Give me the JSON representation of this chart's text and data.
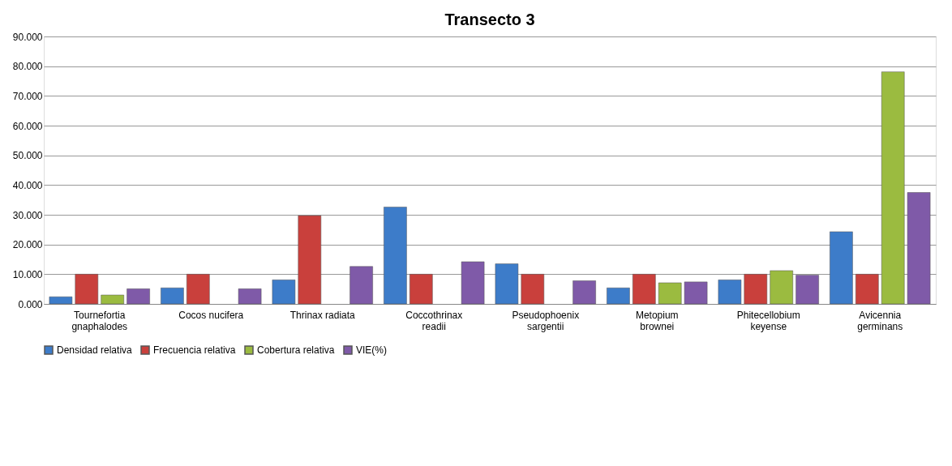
{
  "chart_data": {
    "type": "bar",
    "title": "Transecto 3",
    "categories": [
      "Tournefortia gnaphalodes",
      "Cocos nucifera",
      "Thrinax radiata",
      "Coccothrinax readii",
      "Pseudophoenix sargentii",
      "Metopium brownei",
      "Phitecellobium keyense",
      "Avicennia germinans"
    ],
    "series": [
      {
        "name": "Densidad relativa",
        "color": "#3d7cc9",
        "values": [
          2.4,
          5.4,
          8.1,
          32.6,
          13.5,
          5.4,
          8.1,
          24.3
        ]
      },
      {
        "name": "Frecuencia relativa",
        "color": "#c9403c",
        "values": [
          10.0,
          10.0,
          29.7,
          10.0,
          10.0,
          10.0,
          10.0,
          10.0
        ]
      },
      {
        "name": "Cobertura relativa",
        "color": "#9bbb40",
        "values": [
          3.0,
          null,
          null,
          null,
          null,
          7.1,
          11.2,
          78.1
        ]
      },
      {
        "name": "VIE(%)",
        "color": "#7f5aa8",
        "values": [
          5.1,
          5.1,
          12.6,
          14.2,
          7.8,
          7.4,
          9.7,
          37.5
        ]
      }
    ],
    "ylim": [
      0,
      90
    ],
    "yticks": [
      {
        "value": 0,
        "label": "0.000"
      },
      {
        "value": 10,
        "label": "10.000"
      },
      {
        "value": 20,
        "label": "20.000"
      },
      {
        "value": 30,
        "label": "30.000"
      },
      {
        "value": 40,
        "label": "40.000"
      },
      {
        "value": 50,
        "label": "50.000"
      },
      {
        "value": 60,
        "label": "60.000"
      },
      {
        "value": 70,
        "label": "70.000"
      },
      {
        "value": 80,
        "label": "80.000"
      },
      {
        "value": 90,
        "label": "90.000"
      }
    ],
    "grid": "y",
    "legend": "bottom"
  }
}
